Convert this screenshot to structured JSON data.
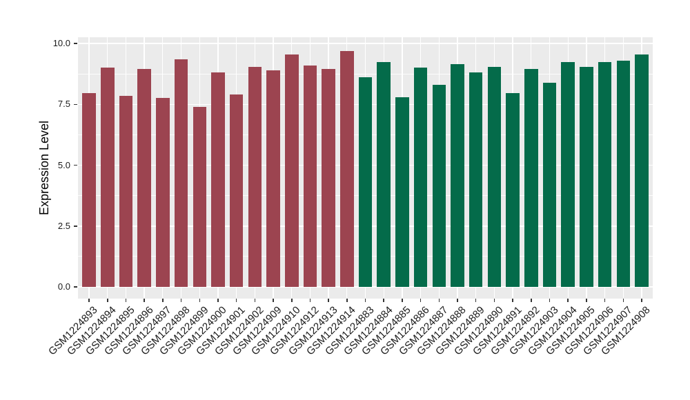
{
  "chart_data": {
    "type": "bar",
    "title": "",
    "xlabel": "",
    "ylabel": "Expression Level",
    "ylim": [
      0,
      10.25
    ],
    "grid": true,
    "legend_position": "none",
    "panel_bg": "#EBEBEB",
    "grid_color": "#FFFFFF",
    "tick_color": "#333333",
    "text_color": "#1A1A1A",
    "ytick_labels": [
      "0.0",
      "2.5",
      "5.0",
      "7.5",
      "10.0"
    ],
    "ytick_values": [
      0,
      2.5,
      5,
      7.5,
      10
    ],
    "minor_tick_values": [
      1.25,
      3.75,
      6.25,
      8.75
    ],
    "group_colors": {
      "maroon": "#9C4450",
      "green": "#046B4A"
    },
    "bars": [
      {
        "label": "GSM1224893",
        "value": 7.95,
        "group": "maroon"
      },
      {
        "label": "GSM1224894",
        "value": 9.0,
        "group": "maroon"
      },
      {
        "label": "GSM1224895",
        "value": 7.85,
        "group": "maroon"
      },
      {
        "label": "GSM1224896",
        "value": 8.95,
        "group": "maroon"
      },
      {
        "label": "GSM1224897",
        "value": 7.75,
        "group": "maroon"
      },
      {
        "label": "GSM1224898",
        "value": 9.35,
        "group": "maroon"
      },
      {
        "label": "GSM1224899",
        "value": 7.4,
        "group": "maroon"
      },
      {
        "label": "GSM1224900",
        "value": 8.8,
        "group": "maroon"
      },
      {
        "label": "GSM1224901",
        "value": 7.9,
        "group": "maroon"
      },
      {
        "label": "GSM1224902",
        "value": 9.05,
        "group": "maroon"
      },
      {
        "label": "GSM1224909",
        "value": 8.9,
        "group": "maroon"
      },
      {
        "label": "GSM1224910",
        "value": 9.55,
        "group": "maroon"
      },
      {
        "label": "GSM1224912",
        "value": 9.1,
        "group": "maroon"
      },
      {
        "label": "GSM1224913",
        "value": 8.95,
        "group": "maroon"
      },
      {
        "label": "GSM1224914",
        "value": 9.7,
        "group": "maroon"
      },
      {
        "label": "GSM1224883",
        "value": 8.6,
        "group": "green"
      },
      {
        "label": "GSM1224884",
        "value": 9.25,
        "group": "green"
      },
      {
        "label": "GSM1224885",
        "value": 7.8,
        "group": "green"
      },
      {
        "label": "GSM1224886",
        "value": 9.0,
        "group": "green"
      },
      {
        "label": "GSM1224887",
        "value": 8.3,
        "group": "green"
      },
      {
        "label": "GSM1224888",
        "value": 9.15,
        "group": "green"
      },
      {
        "label": "GSM1224889",
        "value": 8.8,
        "group": "green"
      },
      {
        "label": "GSM1224890",
        "value": 9.05,
        "group": "green"
      },
      {
        "label": "GSM1224891",
        "value": 7.95,
        "group": "green"
      },
      {
        "label": "GSM1224892",
        "value": 8.95,
        "group": "green"
      },
      {
        "label": "GSM1224903",
        "value": 8.4,
        "group": "green"
      },
      {
        "label": "GSM1224904",
        "value": 9.25,
        "group": "green"
      },
      {
        "label": "GSM1224905",
        "value": 9.05,
        "group": "green"
      },
      {
        "label": "GSM1224906",
        "value": 9.25,
        "group": "green"
      },
      {
        "label": "GSM1224907",
        "value": 9.3,
        "group": "green"
      },
      {
        "label": "GSM1224908",
        "value": 9.55,
        "group": "green"
      }
    ]
  }
}
